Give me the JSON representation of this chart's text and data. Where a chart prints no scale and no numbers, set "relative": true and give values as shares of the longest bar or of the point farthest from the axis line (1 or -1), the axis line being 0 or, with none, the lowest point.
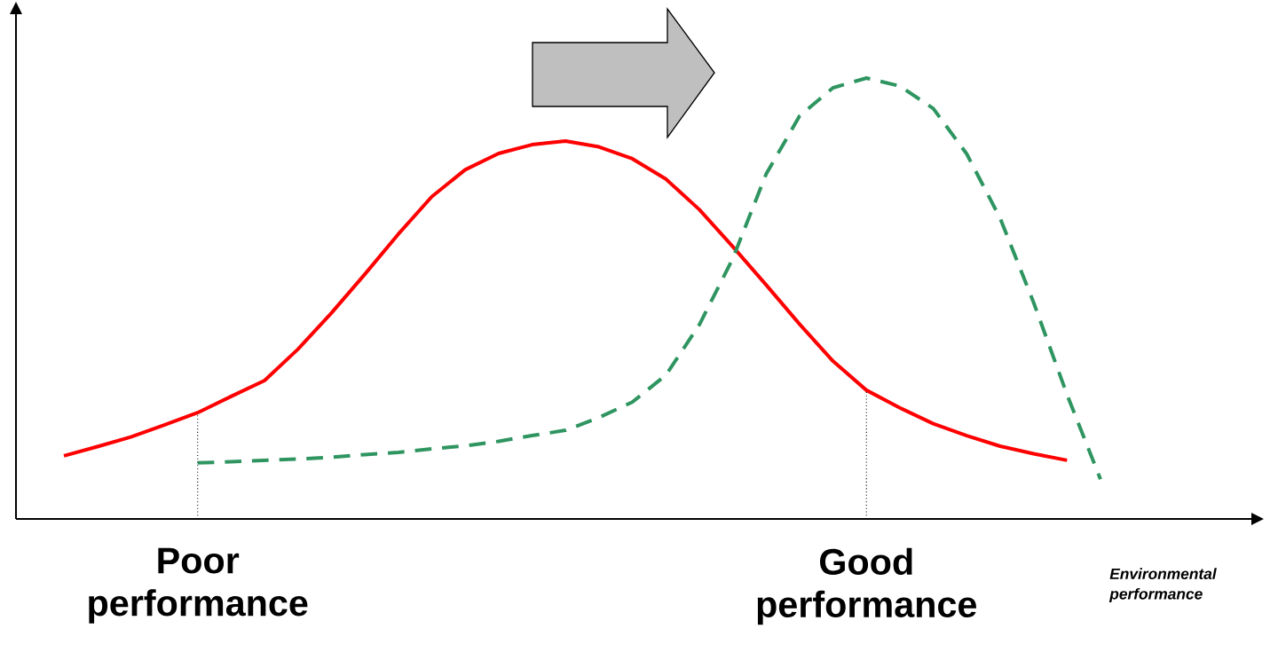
{
  "chart_data": {
    "type": "line",
    "relative": true,
    "xlabel": "Environmental performance",
    "categories": [
      null,
      null,
      null,
      null,
      "Poor performance",
      null,
      null,
      null,
      null,
      null,
      null,
      null,
      null,
      null,
      null,
      null,
      null,
      null,
      null,
      null,
      null,
      null,
      null,
      null,
      "Good performance",
      null,
      null,
      null,
      null,
      null,
      null,
      null
    ],
    "series": [
      {
        "color": "#ff0000",
        "line_style": "solid",
        "values": [
          0.143,
          0.164,
          0.186,
          0.213,
          0.241,
          0.278,
          0.314,
          0.385,
          0.467,
          0.555,
          0.646,
          0.731,
          0.792,
          0.829,
          0.849,
          0.857,
          0.844,
          0.817,
          0.771,
          0.702,
          0.618,
          0.531,
          0.442,
          0.358,
          0.292,
          0.252,
          0.216,
          0.189,
          0.165,
          0.148,
          0.133,
          null
        ]
      },
      {
        "color": "#2e9560",
        "line_style": "dashed",
        "values": [
          null,
          null,
          null,
          null,
          0.127,
          0.13,
          0.133,
          0.136,
          0.14,
          0.146,
          0.151,
          0.159,
          0.166,
          0.176,
          0.189,
          0.201,
          0.23,
          0.265,
          0.326,
          0.44,
          0.59,
          0.782,
          0.914,
          0.978,
          1.0,
          0.982,
          0.931,
          0.828,
          0.682,
          0.491,
          0.282,
          0.09
        ]
      }
    ],
    "ref_lines": [
      {
        "axis": "x",
        "value": "Poor performance",
        "line_style": "dotted",
        "color": "#000000"
      },
      {
        "axis": "x",
        "value": "Good performance",
        "line_style": "dotted",
        "color": "#000000"
      }
    ]
  }
}
